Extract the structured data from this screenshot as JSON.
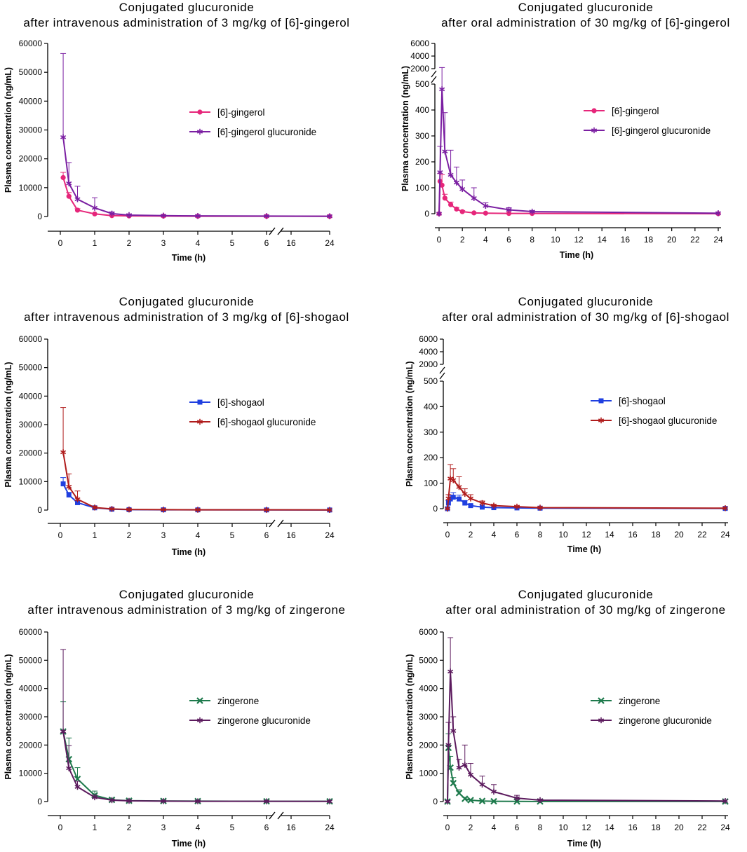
{
  "chart_data": [
    {
      "id": "p1",
      "type": "line",
      "title_line1": "Conjugated glucuronide",
      "title_line2": "after intravenous administration of 3 mg/kg of [6]-gingerol",
      "xlabel": "Time (h)",
      "ylabel": "Plasma concentration (ng/mL)",
      "x_axis": "broken",
      "x_ticks": [
        "0",
        "1",
        "2",
        "3",
        "4",
        "5",
        "6",
        "16",
        "24"
      ],
      "y_axis": "linear",
      "ylim": [
        0,
        60000
      ],
      "y_ticks": [
        "0",
        "10000",
        "20000",
        "30000",
        "40000",
        "50000",
        "60000"
      ],
      "legend_position": "right",
      "series": [
        {
          "name": "[6]-gingerol",
          "color": "#e6267a",
          "marker": "circle",
          "x": [
            0.083,
            0.25,
            0.5,
            1,
            1.5,
            2,
            3,
            4,
            6,
            24
          ],
          "y": [
            13500,
            7000,
            2200,
            900,
            300,
            200,
            150,
            100,
            80,
            50
          ],
          "err": [
            1800,
            1300,
            500,
            200,
            80,
            60,
            40,
            30,
            20,
            15
          ]
        },
        {
          "name": "[6]-gingerol glucuronide",
          "color": "#7b1fa2",
          "marker": "star",
          "x": [
            0.083,
            0.25,
            0.5,
            1,
            1.5,
            2,
            3,
            4,
            6,
            24
          ],
          "y": [
            27500,
            11500,
            6000,
            3000,
            1000,
            500,
            300,
            200,
            150,
            100
          ],
          "err": [
            29000,
            7200,
            4500,
            3500,
            600,
            300,
            150,
            100,
            80,
            60
          ]
        }
      ]
    },
    {
      "id": "p2",
      "type": "line",
      "title_line1": "Conjugated glucuronide",
      "title_line2": "after oral administration of 30 mg/kg of [6]-gingerol",
      "xlabel": "Time (h)",
      "ylabel": "Plasma concentration (ng/mL)",
      "x_axis": "linear",
      "xlim": [
        0,
        24
      ],
      "x_ticks": [
        "0",
        "2",
        "4",
        "6",
        "8",
        "10",
        "12",
        "14",
        "16",
        "18",
        "20",
        "22",
        "24"
      ],
      "y_axis": "segmented",
      "y_ticks_lower": [
        "0",
        "100",
        "200",
        "300",
        "400",
        "500"
      ],
      "y_ticks_upper": [
        "2000",
        "4000",
        "6000"
      ],
      "legend_position": "right",
      "series": [
        {
          "name": "[6]-gingerol",
          "color": "#e6267a",
          "marker": "circle",
          "x": [
            0,
            0.083,
            0.25,
            0.5,
            1,
            1.5,
            2,
            3,
            4,
            6,
            8,
            24
          ],
          "y": [
            0,
            125,
            110,
            60,
            35,
            18,
            8,
            3,
            2,
            1,
            1,
            0
          ],
          "err": [
            0,
            30,
            40,
            15,
            10,
            6,
            4,
            2,
            1,
            1,
            0,
            0
          ]
        },
        {
          "name": "[6]-gingerol glucuronide",
          "color": "#7b1fa2",
          "marker": "star",
          "x": [
            0,
            0.083,
            0.25,
            0.5,
            1,
            1.5,
            2,
            3,
            4,
            6,
            8,
            24
          ],
          "y": [
            0,
            160,
            480,
            240,
            150,
            120,
            95,
            60,
            30,
            15,
            8,
            2
          ],
          "err": [
            0,
            100,
            1700,
            150,
            95,
            60,
            35,
            40,
            12,
            8,
            4,
            1
          ]
        }
      ]
    },
    {
      "id": "p3",
      "type": "line",
      "title_line1": "Conjugated glucuronide",
      "title_line2": "after intravenous administration of 3 mg/kg of [6]-shogaol",
      "xlabel": "Time (h)",
      "ylabel": "Plasma concentration (ng/mL)",
      "x_axis": "broken",
      "x_ticks": [
        "0",
        "1",
        "2",
        "3",
        "4",
        "5",
        "6",
        "16",
        "24"
      ],
      "y_axis": "linear",
      "ylim": [
        0,
        60000
      ],
      "y_ticks": [
        "0",
        "10000",
        "20000",
        "30000",
        "40000",
        "50000",
        "60000"
      ],
      "legend_position": "right",
      "series": [
        {
          "name": "[6]-shogaol",
          "color": "#1f3fe0",
          "marker": "square",
          "x": [
            0.083,
            0.25,
            0.5,
            1,
            1.5,
            2,
            3,
            4,
            6,
            24
          ],
          "y": [
            9200,
            5300,
            2600,
            800,
            300,
            150,
            100,
            80,
            60,
            40
          ],
          "err": [
            2200,
            900,
            500,
            200,
            80,
            50,
            30,
            20,
            15,
            10
          ]
        },
        {
          "name": "[6]-shogaol glucuronide",
          "color": "#b01c1c",
          "marker": "star",
          "x": [
            0.083,
            0.25,
            0.5,
            1,
            1.5,
            2,
            3,
            4,
            6,
            24
          ],
          "y": [
            20300,
            8200,
            3800,
            900,
            400,
            200,
            150,
            100,
            80,
            50
          ],
          "err": [
            15700,
            4500,
            2900,
            500,
            150,
            80,
            50,
            30,
            20,
            15
          ]
        }
      ]
    },
    {
      "id": "p4",
      "type": "line",
      "title_line1": "Conjugated glucuronide",
      "title_line2": "after oral administration of 30 mg/kg of [6]-shogaol",
      "xlabel": "Time (h)",
      "ylabel": "Plasma concentration (ng/mL)",
      "x_axis": "linear",
      "xlim": [
        0,
        24
      ],
      "x_ticks": [
        "0",
        "2",
        "4",
        "6",
        "8",
        "10",
        "12",
        "14",
        "16",
        "18",
        "20",
        "22",
        "24"
      ],
      "y_axis": "segmented",
      "y_ticks_lower": [
        "0",
        "100",
        "200",
        "300",
        "400",
        "500"
      ],
      "y_ticks_upper": [
        "2000",
        "4000",
        "6000"
      ],
      "legend_position": "right",
      "series": [
        {
          "name": "[6]-shogaol",
          "color": "#1f3fe0",
          "marker": "square",
          "x": [
            0,
            0.083,
            0.25,
            0.5,
            1,
            1.5,
            2,
            3,
            4,
            6,
            8,
            24
          ],
          "y": [
            0,
            22,
            38,
            45,
            38,
            22,
            12,
            6,
            4,
            3,
            2,
            1
          ],
          "err": [
            0,
            10,
            15,
            18,
            15,
            10,
            6,
            3,
            2,
            1,
            1,
            0
          ]
        },
        {
          "name": "[6]-shogaol glucuronide",
          "color": "#b01c1c",
          "marker": "star",
          "x": [
            0,
            0.083,
            0.25,
            0.5,
            1,
            1.5,
            2,
            3,
            4,
            6,
            8,
            24
          ],
          "y": [
            0,
            40,
            118,
            112,
            85,
            58,
            40,
            22,
            12,
            8,
            4,
            2
          ],
          "err": [
            0,
            15,
            55,
            45,
            40,
            20,
            15,
            8,
            5,
            3,
            2,
            1
          ]
        }
      ]
    },
    {
      "id": "p5",
      "type": "line",
      "title_line1": "Conjugated glucuronide",
      "title_line2": "after intravenous administration of 3 mg/kg of zingerone",
      "xlabel": "Time (h)",
      "ylabel": "Plasma concentration (ng/mL)",
      "x_axis": "broken",
      "x_ticks": [
        "0",
        "1",
        "2",
        "3",
        "4",
        "5",
        "6",
        "16",
        "24"
      ],
      "y_axis": "linear",
      "ylim": [
        0,
        60000
      ],
      "y_ticks": [
        "0",
        "10000",
        "20000",
        "30000",
        "40000",
        "50000",
        "60000"
      ],
      "legend_position": "right",
      "series": [
        {
          "name": "zingerone",
          "color": "#1e7a4c",
          "marker": "x",
          "x": [
            0.083,
            0.25,
            0.5,
            1,
            1.5,
            2,
            3,
            4,
            6,
            24
          ],
          "y": [
            24800,
            15000,
            8000,
            2200,
            600,
            300,
            200,
            150,
            100,
            80
          ],
          "err": [
            10500,
            7500,
            4000,
            1500,
            300,
            150,
            80,
            50,
            30,
            20
          ]
        },
        {
          "name": "zingerone glucuronide",
          "color": "#5c1b5e",
          "marker": "star",
          "x": [
            0.083,
            0.25,
            0.5,
            1,
            1.5,
            2,
            3,
            4,
            6,
            24
          ],
          "y": [
            24800,
            11800,
            5200,
            1500,
            500,
            250,
            150,
            100,
            80,
            50
          ],
          "err": [
            29000,
            8000,
            2000,
            800,
            200,
            100,
            60,
            40,
            30,
            20
          ]
        }
      ]
    },
    {
      "id": "p6",
      "type": "line",
      "title_line1": "Conjugated glucuronide",
      "title_line2": "after oral administration of 30 mg/kg of zingerone",
      "xlabel": "Time (h)",
      "ylabel": "Plasma concentration (ng/mL)",
      "x_axis": "linear",
      "xlim": [
        0,
        24
      ],
      "x_ticks": [
        "0",
        "2",
        "4",
        "6",
        "8",
        "10",
        "12",
        "14",
        "16",
        "18",
        "20",
        "22",
        "24"
      ],
      "y_axis": "linear",
      "ylim": [
        0,
        6000
      ],
      "y_ticks": [
        "0",
        "1000",
        "2000",
        "3000",
        "4000",
        "5000",
        "6000"
      ],
      "legend_position": "right",
      "series": [
        {
          "name": "zingerone",
          "color": "#1e7a4c",
          "marker": "x",
          "x": [
            0,
            0.083,
            0.25,
            0.5,
            1,
            1.5,
            2,
            3,
            4,
            6,
            8,
            24
          ],
          "y": [
            0,
            1900,
            1200,
            650,
            300,
            100,
            50,
            20,
            10,
            5,
            3,
            2
          ],
          "err": [
            0,
            500,
            400,
            200,
            120,
            50,
            20,
            10,
            5,
            3,
            2,
            1
          ]
        },
        {
          "name": "zingerone glucuronide",
          "color": "#5c1b5e",
          "marker": "star",
          "x": [
            0,
            0.083,
            0.25,
            0.5,
            1,
            1.5,
            2,
            3,
            4,
            6,
            8,
            24
          ],
          "y": [
            0,
            2000,
            4600,
            2500,
            1200,
            1300,
            950,
            600,
            350,
            120,
            50,
            20
          ],
          "err": [
            0,
            800,
            1200,
            500,
            300,
            700,
            400,
            300,
            250,
            100,
            30,
            10
          ]
        }
      ]
    }
  ]
}
